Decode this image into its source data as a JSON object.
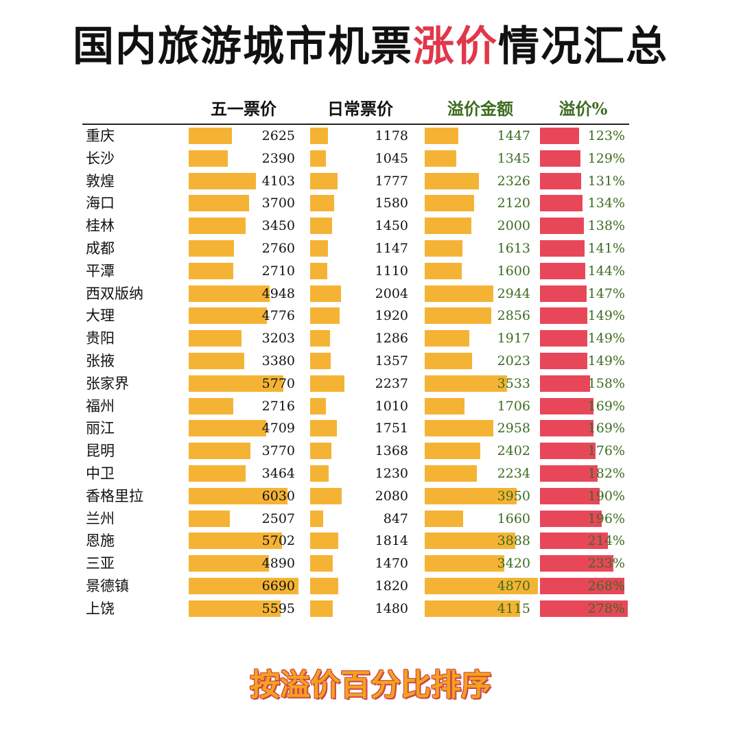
{
  "title": {
    "before": "国内旅游城市机票",
    "highlight": "涨价",
    "after": "情况汇总"
  },
  "chart_data": {
    "type": "table",
    "columns": [
      "五一票价",
      "日常票价",
      "溢价金额",
      "溢价%"
    ],
    "cities": [
      "重庆",
      "长沙",
      "敦煌",
      "海口",
      "桂林",
      "成都",
      "平潭",
      "西双版纳",
      "大理",
      "贵阳",
      "张掖",
      "张家界",
      "福州",
      "丽江",
      "昆明",
      "中卫",
      "香格里拉",
      "兰州",
      "恩施",
      "三亚",
      "景德镇",
      "上饶"
    ],
    "series": [
      {
        "name": "五一票价",
        "values": [
          2625,
          2390,
          4103,
          3700,
          3450,
          2760,
          2710,
          4948,
          4776,
          3203,
          3380,
          5770,
          2716,
          4709,
          3770,
          3464,
          6030,
          2507,
          5702,
          4890,
          6690,
          5595
        ]
      },
      {
        "name": "日常票价",
        "values": [
          1178,
          1045,
          1777,
          1580,
          1450,
          1147,
          1110,
          2004,
          1920,
          1286,
          1357,
          2237,
          1010,
          1751,
          1368,
          1230,
          2080,
          847,
          1814,
          1470,
          1820,
          1480
        ]
      },
      {
        "name": "溢价金额",
        "values": [
          1447,
          1345,
          2326,
          2120,
          2000,
          1613,
          1600,
          2944,
          2856,
          1917,
          2023,
          3533,
          1706,
          2958,
          2402,
          2234,
          3950,
          1660,
          3888,
          3420,
          4870,
          4115
        ]
      },
      {
        "name": "溢价%",
        "values": [
          "123%",
          "129%",
          "131%",
          "134%",
          "138%",
          "141%",
          "144%",
          "147%",
          "149%",
          "149%",
          "149%",
          "158%",
          "169%",
          "169%",
          "176%",
          "182%",
          "190%",
          "196%",
          "214%",
          "233%",
          "268%",
          "278%"
        ]
      }
    ],
    "colors": {
      "bar": "#f5b335",
      "pct_bar": "#e8475a",
      "premium_text": "#3d6b1f",
      "text": "#111111"
    }
  },
  "footer": "按溢价百分比排序"
}
